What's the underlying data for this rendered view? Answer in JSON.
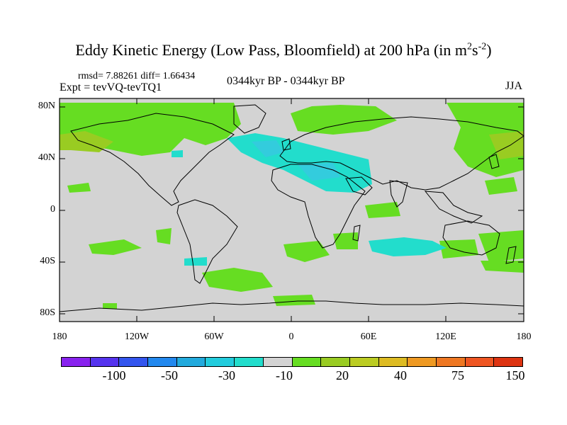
{
  "title": {
    "main": "Eddy Kinetic Energy (Low Pass, Bloomfield) at 200 hPa (in m",
    "sup1": "2",
    "mid": "s",
    "sup2": "-2",
    "end": ")"
  },
  "stats": "rmsd= 7.88261 diff= 1.66434",
  "expt": "Expt = tevVQ-tevTQ1",
  "period": "0344kyr BP - 0344kyr BP",
  "season": "JJA",
  "map": {
    "lat_labels": [
      "80N",
      "40N",
      "0",
      "40S",
      "80S"
    ],
    "lon_labels": [
      "180",
      "120W",
      "60W",
      "0",
      "60E",
      "120E",
      "180"
    ],
    "colors": {
      "background": "#d3d3d3",
      "green": "#66dd22",
      "light_green": "#99cc22",
      "cyan": "#22ddcc",
      "light_blue": "#33ccdd"
    }
  },
  "colorbar": {
    "colors": [
      "#8822ee",
      "#5533ee",
      "#3355ee",
      "#2288ee",
      "#22aadd",
      "#22ccdd",
      "#22ddcc",
      "#d3d3d3",
      "#66dd22",
      "#99cc22",
      "#bbcc22",
      "#ddbb22",
      "#ee9922",
      "#ee7722",
      "#ee5522",
      "#dd3311"
    ],
    "labels": [
      "-100",
      "-50",
      "-30",
      "-10",
      "20",
      "40",
      "75",
      "150"
    ]
  }
}
